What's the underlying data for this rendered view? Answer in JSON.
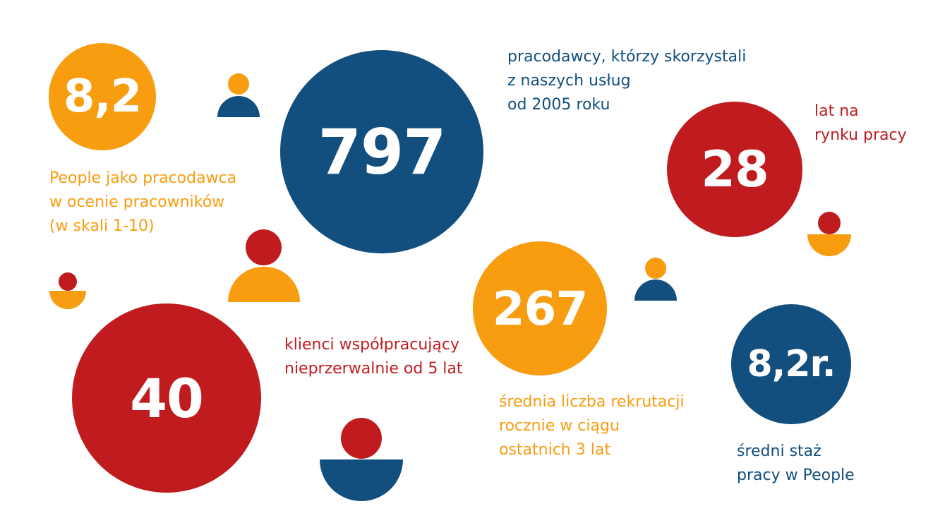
{
  "stats": {
    "rating": {
      "value": "8,2",
      "caption": [
        "People jako pracodawca",
        "w ocenie pracowników",
        "(w skali 1-10)"
      ]
    },
    "employers": {
      "value": "797",
      "caption": [
        "pracodawcy, którzy skorzystali",
        "z naszych usług",
        "od 2005 roku"
      ]
    },
    "years": {
      "value": "28",
      "caption": [
        "lat na",
        "rynku pracy"
      ]
    },
    "clients": {
      "value": "40",
      "caption": [
        "klienci współpracujący",
        "nieprzerwalnie od 5 lat"
      ]
    },
    "recruitments": {
      "value": "267",
      "caption": [
        "średnia liczba rekrutacji",
        "rocznie w ciągu",
        "ostatnich 3 lat"
      ]
    },
    "tenure": {
      "value": "8,2r.",
      "caption": [
        "średni staż",
        "pracy w People"
      ]
    }
  },
  "colors": {
    "orange": "#f89c10",
    "blue": "#124f7e",
    "red": "#c01c20"
  },
  "icons": [
    "person-icon"
  ]
}
